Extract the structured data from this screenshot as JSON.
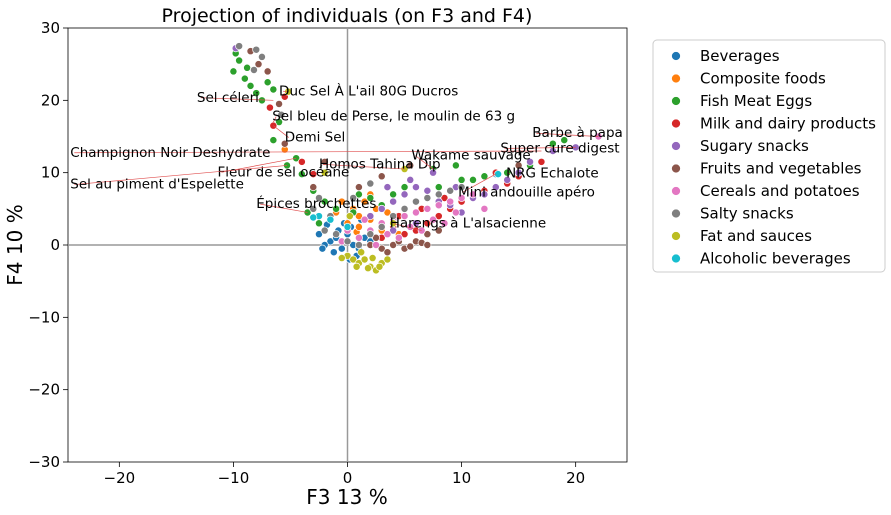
{
  "chart_data": {
    "type": "scatter",
    "title": "Projection of individuals (on F3 and F4)",
    "xlabel": "F3 13 %",
    "ylabel": "F4 10 %",
    "xlim": [
      -24.5,
      24.5
    ],
    "ylim": [
      -30,
      30
    ],
    "xticks": [
      -20,
      -10,
      0,
      10,
      20
    ],
    "yticks": [
      -30,
      -20,
      -10,
      0,
      10,
      20,
      30
    ],
    "xtick_labels": [
      "−20",
      "−10",
      "0",
      "10",
      "20"
    ],
    "ytick_labels": [
      "−30",
      "−20",
      "−10",
      "0",
      "10",
      "20",
      "30"
    ],
    "reference_lines": {
      "x": 0,
      "y": 0,
      "color": "#999999"
    },
    "legend_position": "outside-right",
    "series": [
      {
        "name": "Beverages",
        "color": "#1f77b4",
        "points": [
          [
            -1.5,
            0.5
          ],
          [
            -1,
            1
          ],
          [
            -0.5,
            -0.5
          ],
          [
            0,
            1.5
          ],
          [
            0.5,
            0
          ],
          [
            1,
            -0.5
          ],
          [
            -2,
            0
          ],
          [
            -0.8,
            2
          ],
          [
            0.3,
            2.5
          ],
          [
            1.5,
            1
          ],
          [
            -1.2,
            -1
          ],
          [
            0.8,
            -1.5
          ],
          [
            -2.5,
            1.5
          ],
          [
            2,
            0.5
          ],
          [
            -0.3,
            3
          ],
          [
            -1.8,
            2.8
          ],
          [
            0.2,
            -2
          ],
          [
            -2.2,
            -0.5
          ],
          [
            1.2,
            3.5
          ],
          [
            3,
            1
          ],
          [
            13,
            9.8
          ]
        ]
      },
      {
        "name": "Composite foods",
        "color": "#ff7f0e",
        "points": [
          [
            -5.5,
            13.2
          ],
          [
            0,
            3
          ],
          [
            0.5,
            5
          ],
          [
            1,
            4
          ],
          [
            2,
            3.5
          ],
          [
            -1,
            4.5
          ],
          [
            3,
            2
          ],
          [
            1.5,
            6
          ],
          [
            4,
            3
          ],
          [
            0.8,
            1.8
          ],
          [
            2.5,
            5
          ],
          [
            -0.5,
            6
          ],
          [
            5,
            4
          ],
          [
            6,
            3
          ],
          [
            3.5,
            4.5
          ],
          [
            2,
            7
          ],
          [
            1,
            2.5
          ],
          [
            4.5,
            1.5
          ]
        ]
      },
      {
        "name": "Fish Meat Eggs",
        "color": "#2ca02c",
        "points": [
          [
            -10,
            24
          ],
          [
            -9.5,
            25.5
          ],
          [
            -9,
            23
          ],
          [
            -8.5,
            22
          ],
          [
            -8,
            21
          ],
          [
            -7.5,
            20
          ],
          [
            -9.8,
            26.5
          ],
          [
            -8.8,
            24.5
          ],
          [
            -7,
            22.5
          ],
          [
            -6.5,
            21.5
          ],
          [
            -6,
            17
          ],
          [
            -4.5,
            12
          ],
          [
            -3,
            7.5
          ],
          [
            -2,
            6
          ],
          [
            -4,
            9.8
          ],
          [
            -5.3,
            11
          ],
          [
            -1,
            5
          ],
          [
            0.5,
            4.5
          ],
          [
            2,
            6.5
          ],
          [
            4,
            7
          ],
          [
            6,
            6
          ],
          [
            8,
            8
          ],
          [
            10,
            9
          ],
          [
            12,
            9.5
          ],
          [
            14,
            10
          ],
          [
            16,
            11
          ],
          [
            18,
            14
          ],
          [
            19,
            14.5
          ],
          [
            -3.5,
            4.5
          ],
          [
            -2.5,
            3
          ],
          [
            1,
            7
          ],
          [
            3,
            5.5
          ],
          [
            5,
            8
          ],
          [
            7.5,
            10.5
          ],
          [
            9.5,
            11
          ],
          [
            11,
            9
          ],
          [
            -6.5,
            14.5
          ]
        ]
      },
      {
        "name": "Milk and dairy products",
        "color": "#d62728",
        "points": [
          [
            -6.5,
            16.5
          ],
          [
            -6.8,
            19
          ],
          [
            -5.5,
            20.5
          ],
          [
            -4,
            11.5
          ],
          [
            -3,
            9.8
          ],
          [
            2,
            2
          ],
          [
            3,
            1
          ],
          [
            4,
            2.5
          ],
          [
            5,
            1.5
          ],
          [
            6,
            2
          ],
          [
            7,
            3
          ],
          [
            8,
            4
          ],
          [
            9,
            5
          ],
          [
            10,
            6
          ],
          [
            11,
            7
          ],
          [
            12,
            7.5
          ],
          [
            14,
            8.5
          ],
          [
            15,
            9.5
          ],
          [
            17,
            11.5
          ],
          [
            13,
            10
          ],
          [
            4.5,
            4
          ],
          [
            6.5,
            5
          ],
          [
            8.5,
            6.5
          ]
        ]
      },
      {
        "name": "Sugary snacks",
        "color": "#9467bd",
        "points": [
          [
            -9.8,
            27.2
          ],
          [
            2,
            4
          ],
          [
            3,
            5
          ],
          [
            4,
            6
          ],
          [
            5,
            7
          ],
          [
            6,
            8
          ],
          [
            7,
            7.5
          ],
          [
            8,
            6
          ],
          [
            9,
            5.5
          ],
          [
            10,
            4.5
          ],
          [
            11,
            6.5
          ],
          [
            12,
            7
          ],
          [
            13,
            8
          ],
          [
            14,
            9
          ],
          [
            15,
            10
          ],
          [
            16,
            11.5
          ],
          [
            18,
            13
          ],
          [
            20,
            13.5
          ],
          [
            3.5,
            8
          ],
          [
            5.5,
            9
          ],
          [
            7.5,
            10
          ],
          [
            9.5,
            8
          ],
          [
            4,
            2
          ],
          [
            6,
            3
          ]
        ]
      },
      {
        "name": "Fruits and vegetables",
        "color": "#8c564b",
        "points": [
          [
            -8.5,
            26.8
          ],
          [
            -7.8,
            25
          ],
          [
            -7,
            24
          ],
          [
            -6,
            19.5
          ],
          [
            -5.5,
            14
          ],
          [
            -3,
            8
          ],
          [
            2,
            0
          ],
          [
            3,
            -0.5
          ],
          [
            4,
            0
          ],
          [
            5,
            -0.5
          ],
          [
            6,
            0.5
          ],
          [
            2.5,
            1
          ],
          [
            3.5,
            -1
          ],
          [
            4.5,
            0.5
          ],
          [
            5.5,
            -0.2
          ],
          [
            6.5,
            0.3
          ],
          [
            7,
            1.5
          ],
          [
            8,
            2
          ],
          [
            1,
            8
          ],
          [
            3,
            9.5
          ],
          [
            5.5,
            11
          ],
          [
            15,
            11
          ],
          [
            -2,
            11.5
          ],
          [
            7,
            0
          ]
        ]
      },
      {
        "name": "Cereals and potatoes",
        "color": "#e377c2",
        "points": [
          [
            1,
            1
          ],
          [
            2,
            2
          ],
          [
            3,
            3
          ],
          [
            4,
            3.5
          ],
          [
            5,
            4
          ],
          [
            6,
            4.5
          ],
          [
            7,
            5
          ],
          [
            8,
            5.5
          ],
          [
            9,
            6
          ],
          [
            10,
            6.5
          ],
          [
            11,
            7
          ],
          [
            3.5,
            1.5
          ],
          [
            5.5,
            2.5
          ],
          [
            7.5,
            3.5
          ],
          [
            9.5,
            4.5
          ],
          [
            12,
            5
          ],
          [
            2.5,
            0
          ],
          [
            4.5,
            1
          ],
          [
            6.5,
            2
          ],
          [
            8.5,
            3
          ],
          [
            22,
            15
          ],
          [
            1.5,
            3.5
          ],
          [
            0,
            2
          ],
          [
            -0.5,
            0.5
          ]
        ]
      },
      {
        "name": "Salty snacks",
        "color": "#7f7f7f",
        "points": [
          [
            -9.5,
            27.5
          ],
          [
            -8,
            27
          ],
          [
            -7.5,
            26
          ],
          [
            -8.2,
            24.2
          ],
          [
            -1,
            1.5
          ],
          [
            0,
            0.5
          ],
          [
            1,
            0
          ],
          [
            2,
            1.5
          ],
          [
            3,
            2.5
          ],
          [
            4,
            4
          ],
          [
            5,
            5
          ],
          [
            6,
            6
          ],
          [
            7,
            6.5
          ],
          [
            8,
            7
          ],
          [
            9,
            7.5
          ],
          [
            -2,
            2
          ],
          [
            -3,
            5
          ],
          [
            -1.5,
            4
          ],
          [
            0.5,
            6.5
          ],
          [
            2,
            8.5
          ],
          [
            10,
            8
          ],
          [
            -5.8,
            18
          ],
          [
            -2.5,
            6.5
          ]
        ]
      },
      {
        "name": "Fat and sauces",
        "color": "#bcbd22",
        "points": [
          [
            -5.2,
            21.2
          ],
          [
            0,
            -1.5
          ],
          [
            0.5,
            -2
          ],
          [
            1,
            -2.5
          ],
          [
            1.5,
            -2
          ],
          [
            2,
            -3
          ],
          [
            2.5,
            -3.5
          ],
          [
            3,
            -2.5
          ],
          [
            1.2,
            -1
          ],
          [
            2.2,
            -1.8
          ],
          [
            0.8,
            -3
          ],
          [
            1.8,
            -3.2
          ],
          [
            2.8,
            -3
          ],
          [
            -0.5,
            -1.8
          ],
          [
            3.5,
            -2
          ],
          [
            4,
            3
          ],
          [
            5,
            10.5
          ],
          [
            -2,
            10
          ],
          [
            0.2,
            4
          ]
        ]
      },
      {
        "name": "Alcoholic beverages",
        "color": "#17becf",
        "points": [
          [
            13.2,
            9.8
          ],
          [
            -2.5,
            4
          ],
          [
            -1.5,
            3.5
          ],
          [
            0,
            2.5
          ],
          [
            -3,
            3.8
          ]
        ]
      }
    ],
    "annotations": [
      {
        "text": "Duc Sel À L'ail 80G Ducros",
        "x": -6,
        "y": 20.7,
        "ax": -5.2,
        "ay": 21.2
      },
      {
        "text": "Sel céleri",
        "x": -13.2,
        "y": 19.8,
        "ax": -6.5,
        "ay": 20
      },
      {
        "text": "Sel bleu de Perse, le moulin de 63 g",
        "x": -6.6,
        "y": 17.2,
        "ax": -6.5,
        "ay": 17
      },
      {
        "text": "Demi Sel",
        "x": -5.5,
        "y": 14.3,
        "ax": -6.5,
        "ay": 16.5
      },
      {
        "text": "Champignon Noir Deshydrate",
        "x": -24.3,
        "y": 12.2,
        "ax": 17,
        "ay": 13
      },
      {
        "text": "Fleur de sel océane",
        "x": -11.4,
        "y": 9.5,
        "ax": -4.5,
        "ay": 12
      },
      {
        "text": "Sel au piment d'Espelette",
        "x": -24.3,
        "y": 7.8,
        "ax": -5.3,
        "ay": 11
      },
      {
        "text": "Homos Tahina Dip",
        "x": -2.5,
        "y": 10.6,
        "ax": 5,
        "ay": 10.5
      },
      {
        "text": "Wakame sauvage",
        "x": 5.6,
        "y": 11.8,
        "ax": 7.5,
        "ay": 10.5
      },
      {
        "text": "Barbe à papa",
        "x": 16.2,
        "y": 14.9,
        "ax": 22,
        "ay": 15
      },
      {
        "text": "Super cure digest",
        "x": 13.4,
        "y": 12.8,
        "ax": 20,
        "ay": 13.5
      },
      {
        "text": "NRG Echalote",
        "x": 13.9,
        "y": 9.3,
        "ax": 14,
        "ay": 10
      },
      {
        "text": "Mini andouille apéro",
        "x": 9.7,
        "y": 6.7,
        "ax": 13,
        "ay": 9.8
      },
      {
        "text": "Épices brochettes",
        "x": -8,
        "y": 5.1,
        "ax": -3.5,
        "ay": 4.5
      },
      {
        "text": "Harengs à L'alsacienne",
        "x": 3.7,
        "y": 2.4,
        "ax": 6.5,
        "ay": 2
      }
    ]
  }
}
